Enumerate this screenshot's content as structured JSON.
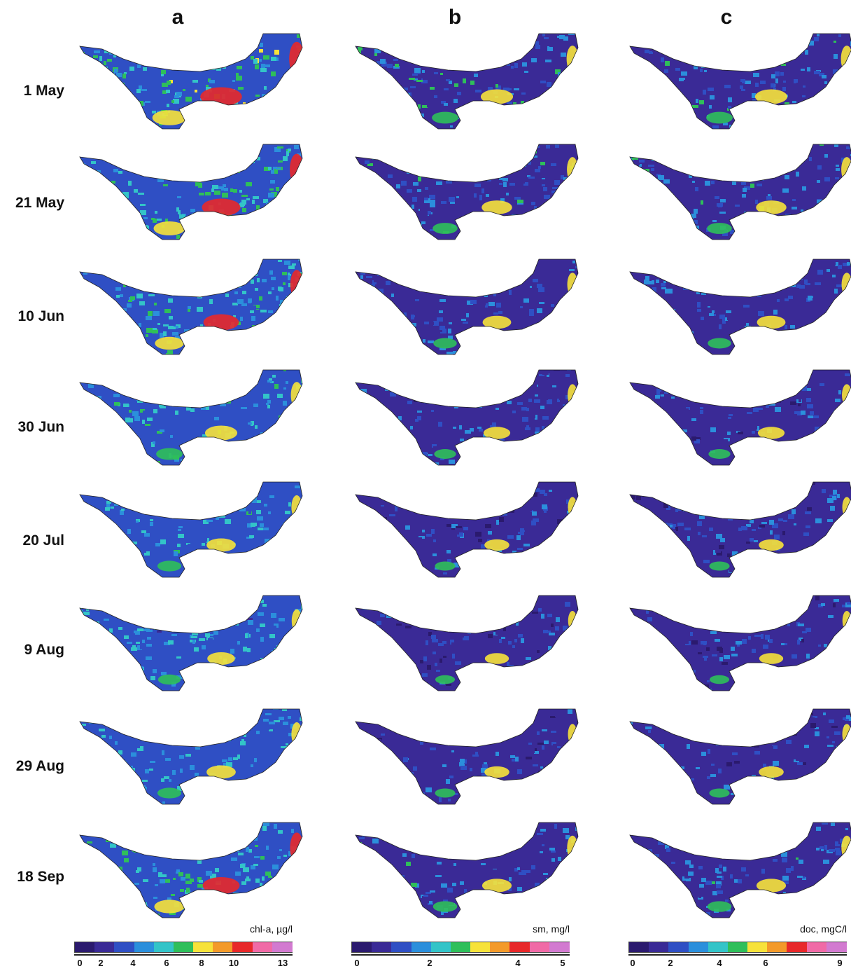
{
  "columns": [
    {
      "id": "a",
      "label": "a",
      "legend": {
        "title": "chl-a, µg/l",
        "ticks": [
          "0",
          "2",
          "4",
          "6",
          "8",
          "10",
          "13"
        ],
        "segments": [
          "#2b1a6e",
          "#3a2a96",
          "#2f4fc4",
          "#2b8fdc",
          "#33c4c8",
          "#2fbf5a",
          "#f7e23a",
          "#f39a2a",
          "#e8282a",
          "#f06aa6",
          "#d27ad0"
        ]
      }
    },
    {
      "id": "b",
      "label": "b",
      "legend": {
        "title": "sm, mg/l",
        "ticks": [
          "0",
          "2",
          "4",
          "5"
        ],
        "segments": [
          "#2b1a6e",
          "#3a2a96",
          "#2f4fc4",
          "#2b8fdc",
          "#33c4c8",
          "#2fbf5a",
          "#f7e23a",
          "#f39a2a",
          "#e8282a",
          "#f06aa6",
          "#d27ad0"
        ]
      }
    },
    {
      "id": "c",
      "label": "c",
      "legend": {
        "title": "doc, mgC/l",
        "ticks": [
          "0",
          "2",
          "4",
          "6",
          "9"
        ],
        "segments": [
          "#2b1a6e",
          "#3a2a96",
          "#2f4fc4",
          "#2b8fdc",
          "#33c4c8",
          "#2fbf5a",
          "#f7e23a",
          "#f39a2a",
          "#e8282a",
          "#f06aa6",
          "#d27ad0"
        ]
      }
    }
  ],
  "rows": [
    {
      "label": "1 May"
    },
    {
      "label": "21 May"
    },
    {
      "label": "10 Jun"
    },
    {
      "label": "30 Jun"
    },
    {
      "label": "20 Jul"
    },
    {
      "label": "9 Aug"
    },
    {
      "label": "29 Aug"
    },
    {
      "label": "18 Sep"
    }
  ]
}
